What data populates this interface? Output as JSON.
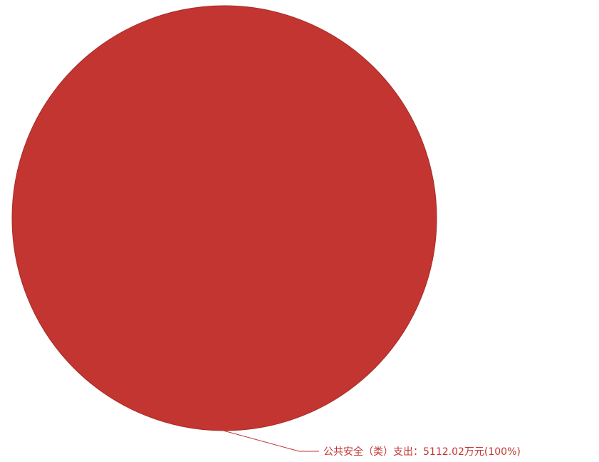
{
  "colors": {
    "background": "#ffffff",
    "slice": "#c23531",
    "slice_edge": "#a82b27"
  },
  "chart_data": {
    "type": "pie",
    "title": "",
    "slices": [
      {
        "name": "公共安全（类）支出",
        "value": 5112.02,
        "unit": "万元",
        "percent": 100,
        "label": "公共安全（类）支出：5112.02万元(100%)"
      }
    ],
    "legend": "none",
    "label_placement": "bottom-right"
  }
}
